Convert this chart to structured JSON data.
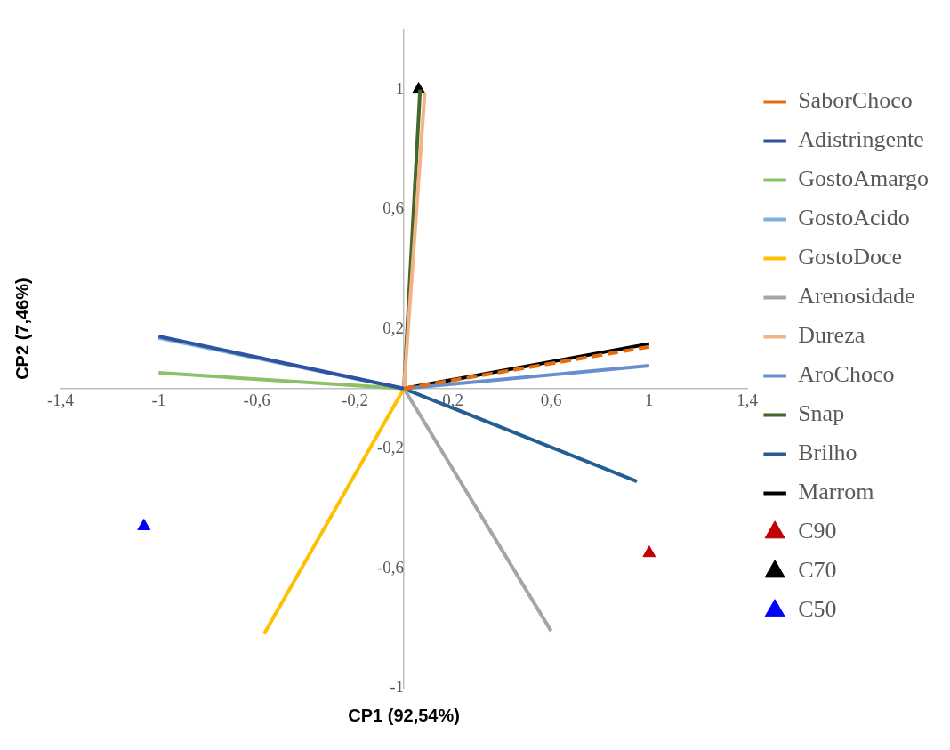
{
  "chart_data": {
    "type": "line",
    "xlabel": "CP1 (92,54%)",
    "ylabel": "CP2 (7,46%)",
    "xlim": [
      -1.4,
      1.4
    ],
    "ylim": [
      -1,
      1.2
    ],
    "xticks": [
      {
        "value": -1.4,
        "label": "-1,4"
      },
      -1,
      {
        "value": -0.6,
        "label": "-0,6"
      },
      {
        "value": -0.2,
        "label": "-0,2"
      },
      {
        "value": 0.2,
        "label": "0,2"
      },
      {
        "value": 0.6,
        "label": "0,6"
      },
      1,
      {
        "value": 1.4,
        "label": "1,4"
      }
    ],
    "yticks": [
      -1,
      {
        "value": -0.6,
        "label": "-0,6"
      },
      {
        "value": -0.2,
        "label": "-0,2"
      },
      {
        "value": 0.2,
        "label": "0,2"
      },
      {
        "value": 0.6,
        "label": "0,6"
      },
      1
    ],
    "grid": false,
    "legend": "right",
    "series": [
      {
        "name": "C50",
        "type": "scatter",
        "marker": "triangle",
        "color": "#0000ff",
        "x": [
          -1.06
        ],
        "values": [
          -0.46
        ]
      },
      {
        "name": "C70",
        "type": "scatter",
        "marker": "triangle",
        "color": "#000000",
        "x": [
          0.06
        ],
        "values": [
          1.0
        ]
      },
      {
        "name": "C90",
        "type": "scatter",
        "marker": "triangle",
        "color": "#c00000",
        "x": [
          1.0
        ],
        "values": [
          -0.55
        ]
      },
      {
        "name": "Marrom",
        "type": "line",
        "marker": "none",
        "color": "#000000",
        "x": [
          0,
          1.0
        ],
        "values": [
          0,
          0.15
        ]
      },
      {
        "name": "Brilho",
        "type": "line",
        "marker": "none",
        "color": "#255e91",
        "x": [
          0,
          0.95
        ],
        "values": [
          0,
          -0.31
        ]
      },
      {
        "name": "Snap",
        "type": "line",
        "marker": "none",
        "color": "#43682b",
        "x": [
          0,
          0.066
        ],
        "values": [
          0,
          1.0
        ]
      },
      {
        "name": "AroChoco",
        "type": "line",
        "marker": "none",
        "color": "#698ed0",
        "x": [
          0,
          1.0
        ],
        "values": [
          0,
          0.077
        ]
      },
      {
        "name": "Dureza",
        "type": "line",
        "marker": "none",
        "color": "#f4b183",
        "x": [
          0,
          0.085
        ],
        "values": [
          0,
          0.99
        ]
      },
      {
        "name": "Arenosidade",
        "type": "line",
        "marker": "none",
        "color": "#a5a5a5",
        "x": [
          0,
          0.6
        ],
        "values": [
          0,
          -0.81
        ]
      },
      {
        "name": "GostoDoce",
        "type": "line",
        "marker": "none",
        "color": "#ffc000",
        "x": [
          0,
          -0.57
        ],
        "values": [
          0,
          -0.82
        ]
      },
      {
        "name": "GostoAcido",
        "type": "line",
        "marker": "none",
        "color": "#7cafdd",
        "x": [
          0,
          -1.0
        ],
        "values": [
          0,
          0.17
        ]
      },
      {
        "name": "GostoAmargo",
        "type": "line",
        "marker": "none",
        "color": "#8cc168",
        "x": [
          0,
          -1.0
        ],
        "values": [
          0,
          0.053
        ]
      },
      {
        "name": "Adistringente",
        "type": "line",
        "marker": "none",
        "color": "#2e54a1",
        "x": [
          0,
          -1.0
        ],
        "values": [
          0,
          0.175
        ]
      },
      {
        "name": "SaborChoco",
        "type": "line",
        "marker": "none",
        "line_style": "dashed",
        "color": "#e46c0a",
        "x": [
          0,
          1.0
        ],
        "values": [
          0,
          0.14
        ]
      }
    ]
  }
}
